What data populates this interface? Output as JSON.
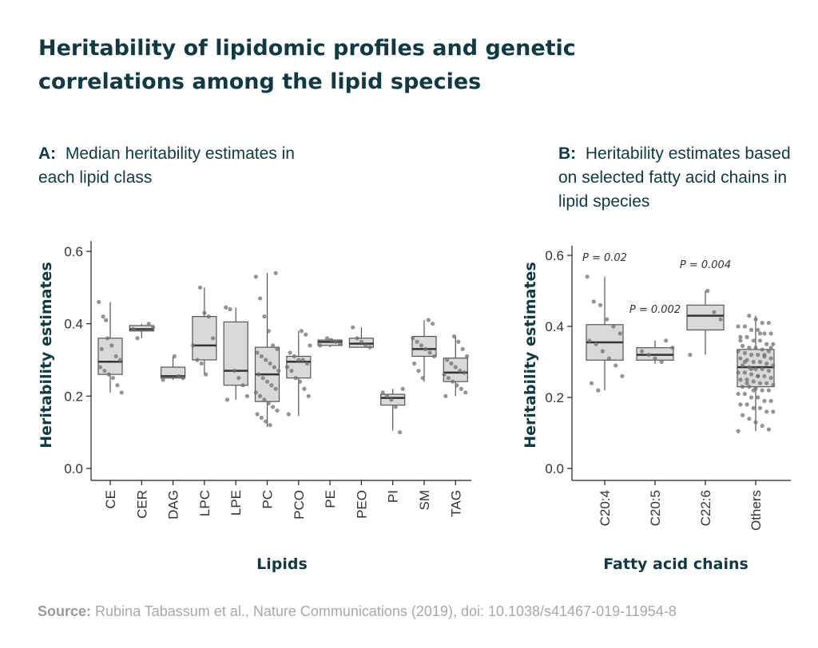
{
  "title": "Heritability of lipidomic profiles and genetic correlations among the lipid species",
  "panel_a": {
    "label": "A:",
    "text": "Median heritability estimates in each lipid class"
  },
  "panel_b": {
    "label": "B:",
    "text": "Heritability estimates based on selected fatty acid chains in lipid species"
  },
  "source": {
    "label": "Source:",
    "text": "Rubina Tabassum et al., Nature Communications (2019), doi: 10.1038/s41467-019-11954-8"
  },
  "colors": {
    "title": "#0f3a44",
    "box_fill": "#d9d9d9",
    "box_stroke": "#555555",
    "point": "#707070",
    "source": "#a8a8a8"
  },
  "chart_data": [
    {
      "type": "box",
      "title": "Median heritability estimates in each lipid class",
      "xlabel": "Lipids",
      "ylabel": "Heritability estimates",
      "ylim": [
        0,
        0.6
      ],
      "yticks": [
        "0.0",
        "0.2",
        "0.4",
        "0.6"
      ],
      "categories": [
        "CE",
        "CER",
        "DAG",
        "LPC",
        "LPE",
        "PC",
        "PCO",
        "PE",
        "PEO",
        "PI",
        "SM",
        "TAG"
      ],
      "boxes": [
        {
          "q1": 0.26,
          "median": 0.295,
          "q3": 0.36,
          "min": 0.21,
          "max": 0.46
        },
        {
          "q1": 0.38,
          "median": 0.385,
          "q3": 0.395,
          "min": 0.36,
          "max": 0.4
        },
        {
          "q1": 0.25,
          "median": 0.255,
          "q3": 0.28,
          "min": 0.245,
          "max": 0.31
        },
        {
          "q1": 0.3,
          "median": 0.34,
          "q3": 0.42,
          "min": 0.26,
          "max": 0.5
        },
        {
          "q1": 0.23,
          "median": 0.27,
          "q3": 0.405,
          "min": 0.19,
          "max": 0.445
        },
        {
          "q1": 0.185,
          "median": 0.26,
          "q3": 0.335,
          "min": 0.115,
          "max": 0.54
        },
        {
          "q1": 0.25,
          "median": 0.295,
          "q3": 0.31,
          "min": 0.145,
          "max": 0.38
        },
        {
          "q1": 0.34,
          "median": 0.35,
          "q3": 0.355,
          "min": 0.335,
          "max": 0.36
        },
        {
          "q1": 0.335,
          "median": 0.345,
          "q3": 0.36,
          "min": 0.335,
          "max": 0.39
        },
        {
          "q1": 0.175,
          "median": 0.195,
          "q3": 0.205,
          "min": 0.105,
          "max": 0.22
        },
        {
          "q1": 0.31,
          "median": 0.33,
          "q3": 0.365,
          "min": 0.24,
          "max": 0.41
        },
        {
          "q1": 0.24,
          "median": 0.265,
          "q3": 0.305,
          "min": 0.2,
          "max": 0.365
        }
      ],
      "points": [
        [
          0.46,
          0.42,
          0.36,
          0.34,
          0.31,
          0.3,
          0.28,
          0.27,
          0.26,
          0.25,
          0.23,
          0.21,
          0.33,
          0.41
        ],
        [
          0.4,
          0.39,
          0.385,
          0.36
        ],
        [
          0.31,
          0.255,
          0.25,
          0.245
        ],
        [
          0.5,
          0.43,
          0.42,
          0.36,
          0.34,
          0.3,
          0.29,
          0.26
        ],
        [
          0.445,
          0.44,
          0.27,
          0.25,
          0.23,
          0.2,
          0.19
        ],
        [
          0.54,
          0.53,
          0.47,
          0.42,
          0.38,
          0.34,
          0.33,
          0.32,
          0.31,
          0.3,
          0.29,
          0.28,
          0.27,
          0.26,
          0.25,
          0.24,
          0.23,
          0.22,
          0.21,
          0.2,
          0.19,
          0.18,
          0.17,
          0.16,
          0.15,
          0.14,
          0.13,
          0.12
        ],
        [
          0.38,
          0.37,
          0.34,
          0.32,
          0.31,
          0.3,
          0.3,
          0.29,
          0.28,
          0.27,
          0.25,
          0.24,
          0.22,
          0.2,
          0.15
        ],
        [
          0.36,
          0.355,
          0.35,
          0.345,
          0.34
        ],
        [
          0.39,
          0.36,
          0.35,
          0.34,
          0.335
        ],
        [
          0.22,
          0.21,
          0.2,
          0.19,
          0.17,
          0.1
        ],
        [
          0.41,
          0.4,
          0.36,
          0.35,
          0.34,
          0.33,
          0.32,
          0.31,
          0.29,
          0.27,
          0.25
        ],
        [
          0.365,
          0.35,
          0.33,
          0.31,
          0.3,
          0.29,
          0.28,
          0.27,
          0.265,
          0.26,
          0.25,
          0.24,
          0.23,
          0.22,
          0.21,
          0.2
        ]
      ]
    },
    {
      "type": "box",
      "title": "Heritability estimates based on selected fatty acid chains in lipid species",
      "xlabel": "Fatty acid chains",
      "ylabel": "Heritability estimates",
      "ylim": [
        0,
        0.6
      ],
      "yticks": [
        "0.0",
        "0.2",
        "0.4",
        "0.6"
      ],
      "categories": [
        "C20:4",
        "C20:5",
        "C22:6",
        "Others"
      ],
      "annotations": [
        {
          "category": "C20:4",
          "text": "P = 0.02",
          "y": 0.595
        },
        {
          "category": "C20:5",
          "text": "P = 0.002",
          "y": 0.45
        },
        {
          "category": "C22:6",
          "text": "P = 0.004",
          "y": 0.575
        }
      ],
      "boxes": [
        {
          "q1": 0.305,
          "median": 0.355,
          "q3": 0.405,
          "min": 0.22,
          "max": 0.54
        },
        {
          "q1": 0.305,
          "median": 0.32,
          "q3": 0.34,
          "min": 0.295,
          "max": 0.36
        },
        {
          "q1": 0.39,
          "median": 0.43,
          "q3": 0.46,
          "min": 0.32,
          "max": 0.5
        },
        {
          "q1": 0.23,
          "median": 0.285,
          "q3": 0.335,
          "min": 0.105,
          "max": 0.43
        }
      ],
      "points": [
        [
          0.54,
          0.47,
          0.46,
          0.42,
          0.4,
          0.38,
          0.36,
          0.35,
          0.33,
          0.31,
          0.29,
          0.26,
          0.24,
          0.22
        ],
        [
          0.36,
          0.34,
          0.33,
          0.32,
          0.31,
          0.3
        ],
        [
          0.5,
          0.44,
          0.42,
          0.32
        ],
        [
          0.43,
          0.42,
          0.41,
          0.41,
          0.4,
          0.4,
          0.39,
          0.39,
          0.38,
          0.38,
          0.37,
          0.37,
          0.36,
          0.36,
          0.35,
          0.35,
          0.345,
          0.34,
          0.34,
          0.335,
          0.33,
          0.33,
          0.325,
          0.32,
          0.32,
          0.315,
          0.31,
          0.31,
          0.305,
          0.3,
          0.3,
          0.295,
          0.29,
          0.29,
          0.285,
          0.28,
          0.28,
          0.275,
          0.27,
          0.27,
          0.265,
          0.26,
          0.26,
          0.255,
          0.25,
          0.25,
          0.245,
          0.24,
          0.24,
          0.235,
          0.23,
          0.23,
          0.225,
          0.22,
          0.22,
          0.21,
          0.21,
          0.2,
          0.2,
          0.19,
          0.19,
          0.18,
          0.18,
          0.17,
          0.17,
          0.16,
          0.16,
          0.15,
          0.14,
          0.13,
          0.12,
          0.11,
          0.105,
          0.3,
          0.28,
          0.26,
          0.32,
          0.34,
          0.36,
          0.24,
          0.22,
          0.38
        ]
      ]
    }
  ]
}
